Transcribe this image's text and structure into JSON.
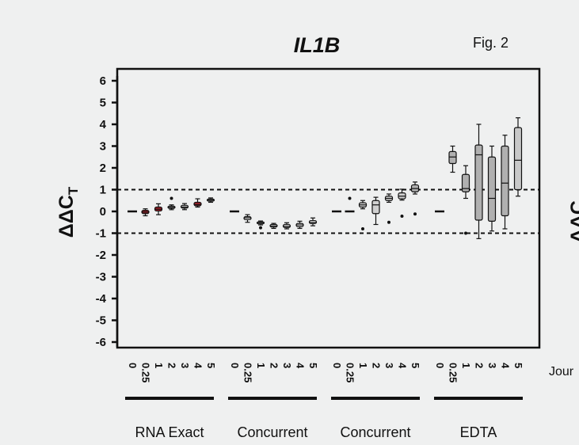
{
  "figure": {
    "title": "IL1B",
    "fig_label": "Fig. 2",
    "ylabel_main": "ΔΔC",
    "ylabel_sub": "T",
    "right_partial_ylabel": "ΔΔC",
    "right_partial_text": "Jour"
  },
  "chart_data": {
    "type": "box",
    "title": "IL1B",
    "ylabel": "ΔΔCT",
    "ylim": [
      -6.5,
      6.5
    ],
    "yticks": [
      6,
      5,
      4,
      3,
      2,
      1,
      0,
      -1,
      -2,
      -3,
      -4,
      -5,
      -6
    ],
    "ytick_labels": [
      "6",
      "5",
      "4",
      "3",
      "2",
      "1",
      "0",
      "-1",
      "-2",
      "-3",
      "-4",
      "-5",
      "-6"
    ],
    "reference_lines": [
      1,
      -1
    ],
    "groups": [
      {
        "name": "RNA Exact",
        "x_labels": [
          "0",
          "0.25",
          "1",
          "2",
          "3",
          "4",
          "5"
        ],
        "boxes": [
          {
            "x": "0",
            "min": 0,
            "q1": 0,
            "median": 0,
            "q3": 0,
            "max": 0,
            "fill": "#d0d0d0",
            "outliers": []
          },
          {
            "x": "0.25",
            "min": -0.2,
            "q1": -0.1,
            "median": -0.03,
            "q3": 0.05,
            "max": 0.12,
            "fill": "#a8202a",
            "outliers": []
          },
          {
            "x": "1",
            "min": -0.15,
            "q1": 0.02,
            "median": 0.1,
            "q3": 0.2,
            "max": 0.35,
            "fill": "#a8202a",
            "outliers": []
          },
          {
            "x": "2",
            "min": 0.08,
            "q1": 0.14,
            "median": 0.18,
            "q3": 0.24,
            "max": 0.3,
            "fill": "#d0d0d0",
            "outliers": [
              0.6
            ]
          },
          {
            "x": "3",
            "min": 0.08,
            "q1": 0.15,
            "median": 0.2,
            "q3": 0.28,
            "max": 0.36,
            "fill": "#d0d0d0",
            "outliers": []
          },
          {
            "x": "4",
            "min": 0.2,
            "q1": 0.26,
            "median": 0.32,
            "q3": 0.42,
            "max": 0.58,
            "fill": "#a8202a",
            "outliers": []
          },
          {
            "x": "5",
            "min": 0.42,
            "q1": 0.47,
            "median": 0.52,
            "q3": 0.57,
            "max": 0.62,
            "fill": "#d0d0d0",
            "outliers": []
          }
        ]
      },
      {
        "name": "Concurrent",
        "x_labels": [
          "0",
          "0.25",
          "1",
          "2",
          "3",
          "4",
          "5"
        ],
        "boxes": [
          {
            "x": "0",
            "min": 0,
            "q1": 0,
            "median": 0,
            "q3": 0,
            "max": 0,
            "fill": "#ffffff",
            "outliers": []
          },
          {
            "x": "0.25",
            "min": -0.5,
            "q1": -0.38,
            "median": -0.3,
            "q3": -0.24,
            "max": -0.15,
            "fill": "#ffffff",
            "outliers": []
          },
          {
            "x": "1",
            "min": -0.62,
            "q1": -0.56,
            "median": -0.52,
            "q3": -0.48,
            "max": -0.44,
            "fill": "#ffffff",
            "outliers": [
              -0.75
            ]
          },
          {
            "x": "2",
            "min": -0.78,
            "q1": -0.72,
            "median": -0.67,
            "q3": -0.6,
            "max": -0.55,
            "fill": "#ffffff",
            "outliers": []
          },
          {
            "x": "3",
            "min": -0.8,
            "q1": -0.74,
            "median": -0.68,
            "q3": -0.6,
            "max": -0.52,
            "fill": "#ffffff",
            "outliers": []
          },
          {
            "x": "4",
            "min": -0.78,
            "q1": -0.7,
            "median": -0.62,
            "q3": -0.55,
            "max": -0.45,
            "fill": "#ffffff",
            "outliers": []
          },
          {
            "x": "5",
            "min": -0.66,
            "q1": -0.56,
            "median": -0.5,
            "q3": -0.42,
            "max": -0.3,
            "fill": "#ffffff",
            "outliers": []
          }
        ]
      },
      {
        "name": "Concurrent",
        "x_labels": [
          "0",
          "0.25",
          "1",
          "2",
          "3",
          "4",
          "5"
        ],
        "boxes": [
          {
            "x": "0",
            "min": 0,
            "q1": 0,
            "median": 0,
            "q3": 0,
            "max": 0,
            "fill": "#ffffff",
            "outliers": []
          },
          {
            "x": "0.25",
            "min": 0,
            "q1": 0,
            "median": 0,
            "q3": 0,
            "max": 0,
            "fill": "#ffffff",
            "outliers": [
              0.6
            ]
          },
          {
            "x": "1",
            "min": 0.12,
            "q1": 0.2,
            "median": 0.3,
            "q3": 0.4,
            "max": 0.5,
            "fill": "#d0d0d0",
            "outliers": [
              -0.8
            ]
          },
          {
            "x": "2",
            "min": -0.6,
            "q1": -0.1,
            "median": 0.3,
            "q3": 0.5,
            "max": 0.65,
            "fill": "#d0d0d0",
            "outliers": []
          },
          {
            "x": "3",
            "min": 0.42,
            "q1": 0.5,
            "median": 0.6,
            "q3": 0.7,
            "max": 0.8,
            "fill": "#d0d0d0",
            "outliers": [
              -0.5
            ]
          },
          {
            "x": "4",
            "min": 0.52,
            "q1": 0.58,
            "median": 0.7,
            "q3": 0.85,
            "max": 1.02,
            "fill": "#d0d0d0",
            "outliers": [
              -0.22
            ]
          },
          {
            "x": "5",
            "min": 0.8,
            "q1": 0.9,
            "median": 1.05,
            "q3": 1.22,
            "max": 1.35,
            "fill": "#b0b0b0",
            "outliers": [
              -0.12
            ]
          }
        ]
      },
      {
        "name": "EDTA",
        "x_labels": [
          "0",
          "0.25",
          "1",
          "2",
          "3",
          "4",
          "5"
        ],
        "boxes": [
          {
            "x": "0",
            "min": 0,
            "q1": 0,
            "median": 0,
            "q3": 0,
            "max": 0,
            "fill": "#d0d0d0",
            "outliers": []
          },
          {
            "x": "0.25",
            "min": 1.8,
            "q1": 2.2,
            "median": 2.5,
            "q3": 2.75,
            "max": 3.0,
            "fill": "#b0b0b0",
            "outliers": []
          },
          {
            "x": "1",
            "min": 0.6,
            "q1": 0.9,
            "median": 1.05,
            "q3": 1.7,
            "max": 2.1,
            "fill": "#b0b0b0",
            "outliers": [
              -1.0
            ]
          },
          {
            "x": "2",
            "min": -1.25,
            "q1": -0.4,
            "median": 2.6,
            "q3": 3.05,
            "max": 4.0,
            "fill": "#b0b0b0",
            "outliers": []
          },
          {
            "x": "3",
            "min": -0.9,
            "q1": -0.45,
            "median": 0.6,
            "q3": 2.5,
            "max": 3.0,
            "fill": "#b0b0b0",
            "outliers": []
          },
          {
            "x": "4",
            "min": -0.8,
            "q1": -0.2,
            "median": 1.3,
            "q3": 3.0,
            "max": 3.5,
            "fill": "#b0b0b0",
            "outliers": []
          },
          {
            "x": "5",
            "min": 0.7,
            "q1": 1.0,
            "median": 2.35,
            "q3": 3.85,
            "max": 4.3,
            "fill": "#c8c8c8",
            "outliers": []
          }
        ]
      }
    ]
  }
}
